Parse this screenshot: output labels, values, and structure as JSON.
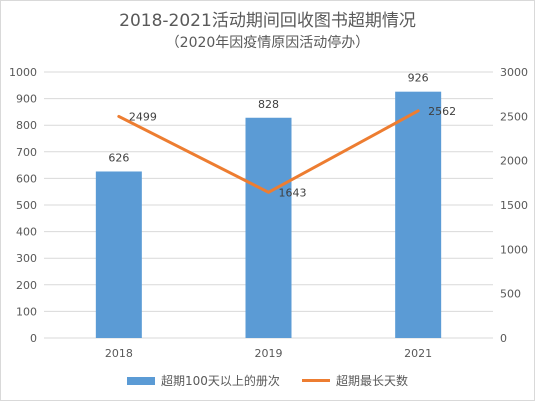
{
  "colors": {
    "bar": "#5b9bd5",
    "line": "#ed7d31",
    "grid": "#d9d9d9",
    "text": "#595959"
  },
  "chart_data": {
    "type": "bar",
    "title": "2018-2021活动期间回收图书超期情况",
    "subtitle": "（2020年因疫情原因活动停办）",
    "categories": [
      "2018",
      "2019",
      "2021"
    ],
    "series": [
      {
        "name": "超期100天以上的册次",
        "type": "bar",
        "axis": "left",
        "values": [
          626,
          828,
          926
        ]
      },
      {
        "name": "超期最长天数",
        "type": "line",
        "axis": "right",
        "values": [
          2499,
          1643,
          2562
        ]
      }
    ],
    "y_left": {
      "min": 0,
      "max": 1000,
      "step": 100,
      "ticks": [
        "0",
        "100",
        "200",
        "300",
        "400",
        "500",
        "600",
        "700",
        "800",
        "900",
        "1000"
      ]
    },
    "y_right": {
      "min": 0,
      "max": 3000,
      "step": 500,
      "ticks": [
        "0",
        "500",
        "1000",
        "1500",
        "2000",
        "2500",
        "3000"
      ]
    },
    "grid": true,
    "legend": "bottom"
  }
}
